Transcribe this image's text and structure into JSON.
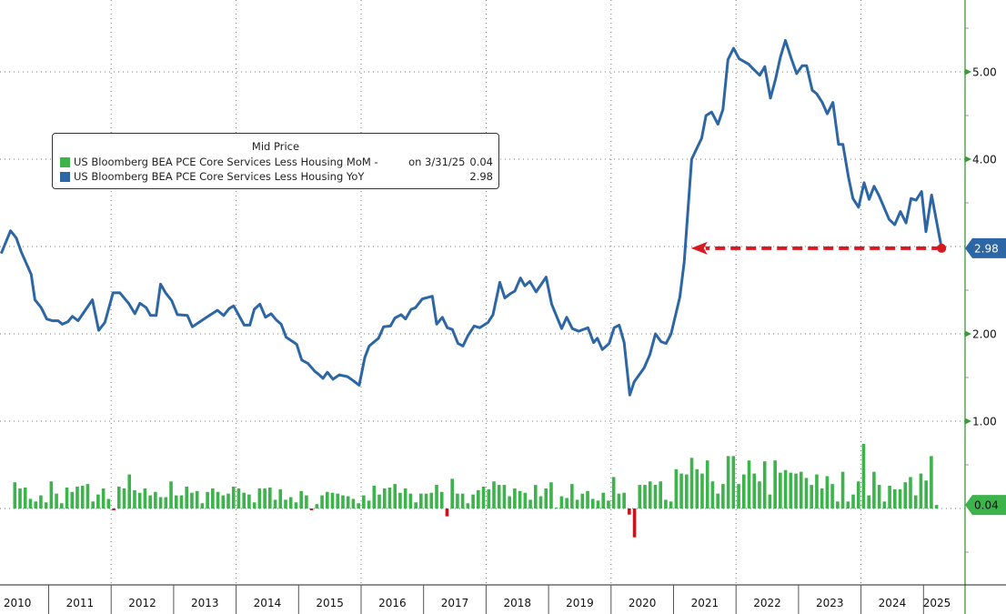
{
  "legend": {
    "title": "Mid Price",
    "entries": [
      {
        "name": "US Bloomberg BEA PCE Core Services Less Housing MoM -",
        "note": "on 3/31/25",
        "value": "0.04",
        "color": "#3cb44b"
      },
      {
        "name": "US Bloomberg BEA PCE Core Services Less Housing YoY",
        "value": "2.98",
        "color": "#2d66a5"
      }
    ]
  },
  "chart_data": {
    "type": "line+bar",
    "title": "",
    "xlabel": "",
    "ylabel": "",
    "xlim": [
      2010.22,
      2025.7
    ],
    "ylim": [
      -0.88,
      5.82
    ],
    "y_axis_side": "right",
    "y_ticks": [
      "1.00",
      "2.00",
      "4.00",
      "5.00"
    ],
    "x_ticks": [
      "2010",
      "2011",
      "2012",
      "2013",
      "2014",
      "2015",
      "2016",
      "2017",
      "2018",
      "2019",
      "2020",
      "2021",
      "2022",
      "2023",
      "2024",
      "2025"
    ],
    "grid": true,
    "legend_position": "upper-left",
    "last_value_tags": {
      "yoy": "2.98",
      "mom": "0.04"
    },
    "colors": {
      "line": "#2d66a5",
      "bar_pos": "#3cb44b",
      "bar_neg": "#c8141c",
      "axis": "#3a9a3a",
      "annotation": "#d71920",
      "tag_yoy": "#2d66a5",
      "tag_mom": "#3cb44b"
    },
    "annotation": {
      "type": "dashed-arrow",
      "y": 2.98,
      "from_x": 2025.29,
      "to_x": 2021.28
    },
    "series": [
      {
        "name": "US Bloomberg BEA PCE Core Services Less Housing YoY",
        "type": "line",
        "points": [
          [
            2010.24,
            2.92
          ],
          [
            2010.39,
            3.18
          ],
          [
            2010.48,
            3.1
          ],
          [
            2010.56,
            2.94
          ],
          [
            2010.72,
            2.68
          ],
          [
            2010.78,
            2.39
          ],
          [
            2010.88,
            2.3
          ],
          [
            2010.97,
            2.17
          ],
          [
            2011.06,
            2.15
          ],
          [
            2011.15,
            2.15
          ],
          [
            2011.22,
            2.11
          ],
          [
            2011.31,
            2.14
          ],
          [
            2011.38,
            2.2
          ],
          [
            2011.47,
            2.15
          ],
          [
            2011.7,
            2.39
          ],
          [
            2011.8,
            2.04
          ],
          [
            2011.9,
            2.13
          ],
          [
            2012.03,
            2.47
          ],
          [
            2012.14,
            2.47
          ],
          [
            2012.28,
            2.35
          ],
          [
            2012.38,
            2.23
          ],
          [
            2012.46,
            2.35
          ],
          [
            2012.56,
            2.3
          ],
          [
            2012.63,
            2.21
          ],
          [
            2012.72,
            2.21
          ],
          [
            2012.79,
            2.57
          ],
          [
            2012.87,
            2.47
          ],
          [
            2012.97,
            2.38
          ],
          [
            2013.06,
            2.22
          ],
          [
            2013.22,
            2.21
          ],
          [
            2013.3,
            2.08
          ],
          [
            2013.55,
            2.2
          ],
          [
            2013.7,
            2.27
          ],
          [
            2013.8,
            2.21
          ],
          [
            2013.89,
            2.29
          ],
          [
            2013.96,
            2.32
          ],
          [
            2014.13,
            2.1
          ],
          [
            2014.22,
            2.1
          ],
          [
            2014.29,
            2.28
          ],
          [
            2014.38,
            2.34
          ],
          [
            2014.47,
            2.19
          ],
          [
            2014.56,
            2.23
          ],
          [
            2014.64,
            2.16
          ],
          [
            2014.72,
            2.11
          ],
          [
            2014.8,
            1.96
          ],
          [
            2014.97,
            1.88
          ],
          [
            2015.05,
            1.7
          ],
          [
            2015.15,
            1.66
          ],
          [
            2015.26,
            1.57
          ],
          [
            2015.33,
            1.53
          ],
          [
            2015.39,
            1.49
          ],
          [
            2015.46,
            1.56
          ],
          [
            2015.55,
            1.48
          ],
          [
            2015.65,
            1.53
          ],
          [
            2015.78,
            1.51
          ],
          [
            2015.88,
            1.46
          ],
          [
            2015.97,
            1.41
          ],
          [
            2016.06,
            1.73
          ],
          [
            2016.13,
            1.86
          ],
          [
            2016.28,
            1.95
          ],
          [
            2016.36,
            2.08
          ],
          [
            2016.47,
            2.09
          ],
          [
            2016.54,
            2.18
          ],
          [
            2016.64,
            2.22
          ],
          [
            2016.71,
            2.17
          ],
          [
            2016.8,
            2.28
          ],
          [
            2016.87,
            2.3
          ],
          [
            2016.98,
            2.4
          ],
          [
            2017.14,
            2.43
          ],
          [
            2017.21,
            2.11
          ],
          [
            2017.3,
            2.19
          ],
          [
            2017.38,
            2.07
          ],
          [
            2017.46,
            2.05
          ],
          [
            2017.55,
            1.89
          ],
          [
            2017.63,
            1.86
          ],
          [
            2017.71,
            1.98
          ],
          [
            2017.81,
            2.09
          ],
          [
            2017.9,
            2.07
          ],
          [
            2018.03,
            2.13
          ],
          [
            2018.11,
            2.22
          ],
          [
            2018.22,
            2.59
          ],
          [
            2018.3,
            2.41
          ],
          [
            2018.39,
            2.46
          ],
          [
            2018.46,
            2.49
          ],
          [
            2018.55,
            2.64
          ],
          [
            2018.62,
            2.55
          ],
          [
            2018.7,
            2.6
          ],
          [
            2018.8,
            2.48
          ],
          [
            2018.96,
            2.65
          ],
          [
            2019.05,
            2.34
          ],
          [
            2019.13,
            2.2
          ],
          [
            2019.21,
            2.06
          ],
          [
            2019.29,
            2.19
          ],
          [
            2019.38,
            2.06
          ],
          [
            2019.48,
            2.03
          ],
          [
            2019.63,
            2.07
          ],
          [
            2019.72,
            1.9
          ],
          [
            2019.78,
            1.95
          ],
          [
            2019.86,
            1.82
          ],
          [
            2019.97,
            1.89
          ],
          [
            2020.05,
            2.07
          ],
          [
            2020.13,
            2.1
          ],
          [
            2020.21,
            1.9
          ],
          [
            2020.3,
            1.3
          ],
          [
            2020.37,
            1.45
          ],
          [
            2020.53,
            1.61
          ],
          [
            2020.62,
            1.76
          ],
          [
            2020.71,
            2.0
          ],
          [
            2020.8,
            1.91
          ],
          [
            2020.88,
            1.89
          ],
          [
            2020.96,
            2.0
          ],
          [
            2021.1,
            2.42
          ],
          [
            2021.17,
            2.82
          ],
          [
            2021.29,
            4.0
          ],
          [
            2021.45,
            4.24
          ],
          [
            2021.52,
            4.5
          ],
          [
            2021.61,
            4.54
          ],
          [
            2021.71,
            4.4
          ],
          [
            2021.79,
            4.57
          ],
          [
            2021.87,
            5.14
          ],
          [
            2021.96,
            5.27
          ],
          [
            2022.05,
            5.15
          ],
          [
            2022.2,
            5.09
          ],
          [
            2022.28,
            5.03
          ],
          [
            2022.38,
            4.96
          ],
          [
            2022.46,
            5.06
          ],
          [
            2022.55,
            4.7
          ],
          [
            2022.63,
            4.91
          ],
          [
            2022.71,
            5.17
          ],
          [
            2022.79,
            5.36
          ],
          [
            2022.88,
            5.16
          ],
          [
            2022.97,
            4.98
          ],
          [
            2023.06,
            5.07
          ],
          [
            2023.13,
            5.07
          ],
          [
            2023.22,
            4.79
          ],
          [
            2023.29,
            4.75
          ],
          [
            2023.38,
            4.65
          ],
          [
            2023.46,
            4.52
          ],
          [
            2023.55,
            4.65
          ],
          [
            2023.64,
            4.17
          ],
          [
            2023.71,
            4.17
          ],
          [
            2023.8,
            3.79
          ],
          [
            2023.87,
            3.55
          ],
          [
            2023.96,
            3.45
          ],
          [
            2024.05,
            3.73
          ],
          [
            2024.13,
            3.54
          ],
          [
            2024.21,
            3.69
          ],
          [
            2024.29,
            3.58
          ],
          [
            2024.45,
            3.31
          ],
          [
            2024.54,
            3.25
          ],
          [
            2024.63,
            3.4
          ],
          [
            2024.72,
            3.27
          ],
          [
            2024.8,
            3.55
          ],
          [
            2024.88,
            3.53
          ],
          [
            2024.97,
            3.63
          ],
          [
            2025.04,
            3.17
          ],
          [
            2025.13,
            3.59
          ],
          [
            2025.29,
            2.98
          ]
        ]
      },
      {
        "name": "US Bloomberg BEA PCE Core Services Less Housing MoM",
        "type": "bar",
        "start_month": "2010-06",
        "values": [
          0.3,
          0.23,
          0.24,
          0.11,
          0.08,
          0.15,
          0.07,
          0.31,
          0.17,
          0.06,
          0.24,
          0.19,
          0.25,
          0.26,
          0.28,
          0.08,
          0.16,
          0.23,
          0.11,
          -0.02,
          0.25,
          0.23,
          0.39,
          0.21,
          0.18,
          0.23,
          0.15,
          0.19,
          0.13,
          0.13,
          0.31,
          0.15,
          0.15,
          0.25,
          0.18,
          0.2,
          0.06,
          0.19,
          0.23,
          0.19,
          0.15,
          0.17,
          0.25,
          0.23,
          0.18,
          0.16,
          0.07,
          0.23,
          0.23,
          0.24,
          0.1,
          0.22,
          0.1,
          0.13,
          0.07,
          0.2,
          0.15,
          -0.02,
          0.05,
          0.15,
          0.19,
          0.18,
          0.17,
          0.15,
          0.14,
          0.11,
          0.06,
          0.15,
          0.09,
          0.26,
          0.16,
          0.23,
          0.24,
          0.28,
          0.18,
          0.23,
          0.17,
          0.07,
          0.17,
          0.17,
          0.18,
          0.27,
          0.19,
          -0.09,
          0.34,
          0.17,
          0.17,
          0.06,
          0.16,
          0.21,
          0.25,
          0.22,
          0.31,
          0.27,
          0.27,
          0.14,
          0.23,
          0.2,
          0.18,
          0.1,
          0.27,
          0.14,
          0.23,
          0.3,
          0.01,
          0.14,
          0.12,
          0.28,
          0.1,
          0.17,
          0.2,
          0.11,
          0.09,
          0.18,
          0.09,
          0.36,
          0.17,
          0.18,
          -0.07,
          -0.33,
          0.27,
          0.27,
          0.31,
          0.27,
          0.31,
          0.1,
          0.08,
          0.45,
          0.4,
          0.39,
          0.58,
          0.45,
          0.4,
          0.55,
          0.31,
          0.17,
          0.28,
          0.6,
          0.6,
          0.28,
          0.39,
          0.55,
          0.4,
          0.31,
          0.54,
          0.16,
          0.55,
          0.41,
          0.44,
          0.41,
          0.4,
          0.42,
          0.35,
          0.27,
          0.39,
          0.23,
          0.37,
          0.28,
          0.08,
          0.42,
          0.08,
          0.16,
          0.31,
          0.74,
          0.15,
          0.42,
          0.27,
          0.08,
          0.26,
          0.22,
          0.22,
          0.3,
          0.36,
          0.15,
          0.4,
          0.32,
          0.6,
          0.04
        ]
      }
    ]
  }
}
